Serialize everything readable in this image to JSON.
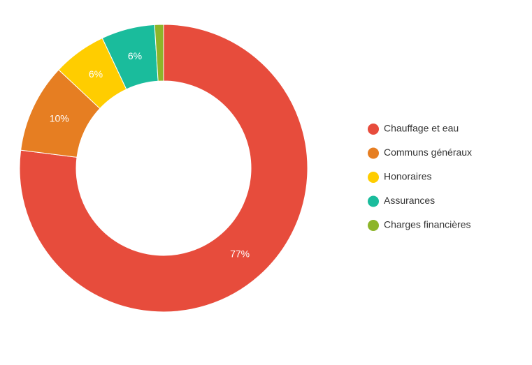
{
  "chart_data": {
    "type": "donut",
    "categories": [
      "Chauffage et eau",
      "Communs généraux",
      "Honoraires",
      "Assurances",
      "Charges financières"
    ],
    "values": [
      77,
      10,
      6,
      6,
      1
    ],
    "value_labels": [
      "77%",
      "10%",
      "6%",
      "6%",
      null
    ],
    "colors": [
      "#e74c3c",
      "#e67e22",
      "#ffcd00",
      "#1abc9c",
      "#8db52a"
    ],
    "legend": "right"
  }
}
